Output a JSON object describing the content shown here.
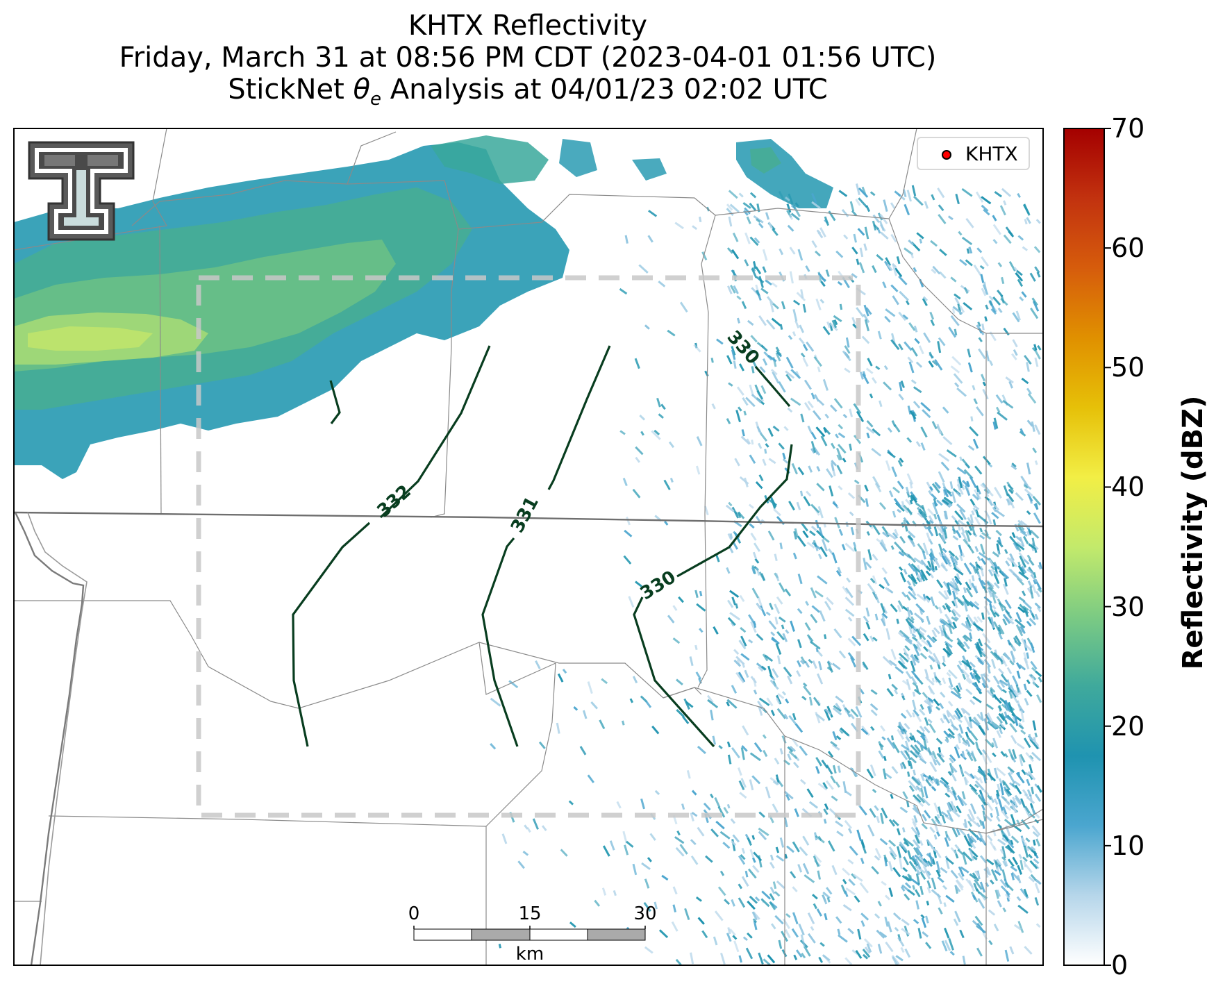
{
  "title": {
    "line1": "KHTX Reflectivity",
    "line2": "Friday, March 31 at 08:56 PM CDT (2023-04-01 01:56 UTC)",
    "line3": "StickNet θe Analysis at 04/01/23 02:02 UTC"
  },
  "legend": {
    "station": "KHTX",
    "marker_color": "#ff0000"
  },
  "colorbar": {
    "label": "Reflectivity (dBZ)",
    "ticks": [
      "0",
      "10",
      "20",
      "30",
      "40",
      "50",
      "60",
      "70"
    ],
    "min": 0,
    "max": 70,
    "colors": [
      "#ffffff",
      "#b6d6ea",
      "#4ba6cf",
      "#1f93b0",
      "#3fa99c",
      "#7ccb83",
      "#c3ea6b",
      "#f2ee45",
      "#e6c008",
      "#e09000",
      "#d65c0c",
      "#c2320f",
      "#a40000"
    ]
  },
  "scale_bar": {
    "labels": [
      "0",
      "15",
      "30"
    ],
    "unit": "km"
  },
  "contours": {
    "color": "#083d1f",
    "labels": [
      {
        "value": "332"
      },
      {
        "value": "331"
      },
      {
        "value": "330"
      },
      {
        "value": "330"
      }
    ]
  },
  "colors": {
    "analysis_box": "#c8c8c8",
    "boundaries": "#7f7f7f"
  }
}
